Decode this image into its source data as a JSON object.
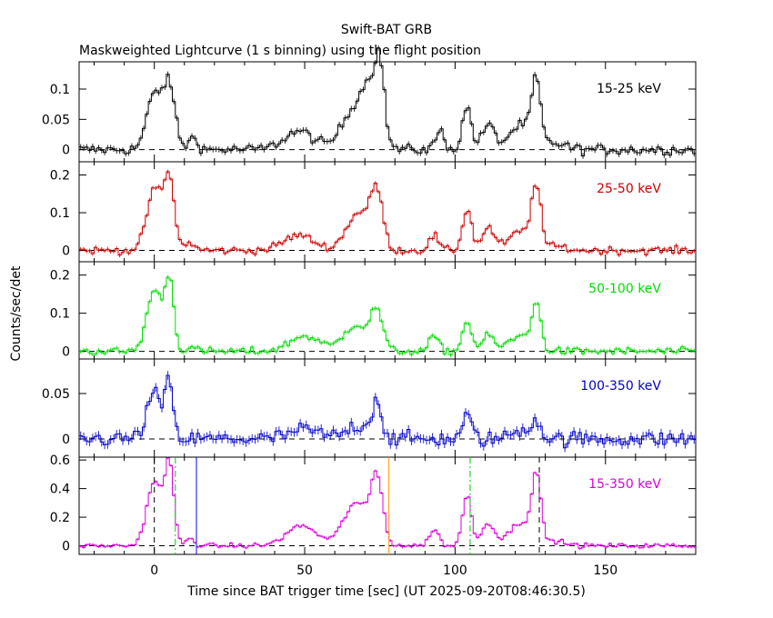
{
  "chart_data": {
    "type": "line",
    "title": "Swift-BAT GRB",
    "subtitle": "Maskweighted Lightcurve (1 s binning) using the flight position",
    "xlabel": "Time since BAT trigger time [sec] (UT 2025-09-20T08:46:30.5)",
    "ylabel": "Counts/sec/det",
    "xlim": [
      -25,
      180
    ],
    "xticks": [
      0,
      50,
      100,
      150
    ],
    "marker_lines": [
      {
        "x": 0,
        "color": "#000000",
        "style": "dashed"
      },
      {
        "x": 7,
        "color": "#00cc00",
        "style": "dashdot"
      },
      {
        "x": 14,
        "color": "#0000ff",
        "style": "solid"
      },
      {
        "x": 78,
        "color": "#ff9900",
        "style": "solid"
      },
      {
        "x": 105,
        "color": "#00cc00",
        "style": "dashdot"
      },
      {
        "x": 128,
        "color": "#000000",
        "style": "dashed"
      }
    ],
    "panels": [
      {
        "name": "15-25 keV",
        "color": "#000000",
        "ylim": [
          -0.02,
          0.145
        ],
        "yticks": [
          0,
          0.05,
          0.1
        ],
        "ytick_labels": [
          "0",
          "0.05",
          "0.1"
        ],
        "noise": 0.006,
        "peaks": [
          [
            0,
            0.09,
            2.5
          ],
          [
            5,
            0.1,
            2.0
          ],
          [
            13,
            0.02,
            1.5
          ],
          [
            48,
            0.03,
            5.0
          ],
          [
            66,
            0.06,
            4.0
          ],
          [
            72,
            0.09,
            3.0
          ],
          [
            75,
            0.1,
            1.5
          ],
          [
            95,
            0.03,
            1.5
          ],
          [
            104,
            0.07,
            1.5
          ],
          [
            111,
            0.04,
            2.0
          ],
          [
            122,
            0.04,
            4.0
          ],
          [
            127,
            0.1,
            1.5
          ],
          [
            134,
            0.01,
            3.0
          ]
        ]
      },
      {
        "name": "25-50 keV",
        "color": "#cc0000",
        "ylim": [
          -0.03,
          0.235
        ],
        "yticks": [
          0,
          0.1,
          0.2
        ],
        "ytick_labels": [
          "0",
          "0.1",
          "0.2"
        ],
        "noise": 0.007,
        "peaks": [
          [
            0,
            0.16,
            2.5
          ],
          [
            5,
            0.18,
            1.8
          ],
          [
            12,
            0.02,
            1.5
          ],
          [
            48,
            0.04,
            5.0
          ],
          [
            68,
            0.1,
            4.0
          ],
          [
            74,
            0.14,
            2.0
          ],
          [
            93,
            0.04,
            1.5
          ],
          [
            104,
            0.11,
            1.5
          ],
          [
            111,
            0.06,
            2.0
          ],
          [
            122,
            0.05,
            4.0
          ],
          [
            127,
            0.16,
            1.5
          ],
          [
            134,
            0.01,
            3.0
          ]
        ]
      },
      {
        "name": "50-100 keV",
        "color": "#00dd00",
        "ylim": [
          -0.02,
          0.235
        ],
        "yticks": [
          0,
          0.1,
          0.2
        ],
        "ytick_labels": [
          "0",
          "0.1",
          "0.2"
        ],
        "noise": 0.007,
        "peaks": [
          [
            0,
            0.16,
            2.5
          ],
          [
            5,
            0.18,
            1.5
          ],
          [
            12,
            0.01,
            1.5
          ],
          [
            50,
            0.04,
            5.0
          ],
          [
            67,
            0.07,
            4.0
          ],
          [
            74,
            0.1,
            2.0
          ],
          [
            93,
            0.04,
            1.5
          ],
          [
            104,
            0.08,
            1.5
          ],
          [
            111,
            0.04,
            2.0
          ],
          [
            122,
            0.04,
            4.0
          ],
          [
            127,
            0.11,
            1.5
          ]
        ]
      },
      {
        "name": "100-350 keV",
        "color": "#0000cc",
        "ylim": [
          -0.02,
          0.088
        ],
        "yticks": [
          0,
          0.05
        ],
        "ytick_labels": [
          "0",
          "0.05"
        ],
        "noise": 0.006,
        "peaks": [
          [
            0,
            0.05,
            2.5
          ],
          [
            5,
            0.06,
            1.2
          ],
          [
            50,
            0.01,
            5.0
          ],
          [
            68,
            0.015,
            4.0
          ],
          [
            74,
            0.04,
            1.5
          ],
          [
            104,
            0.025,
            1.5
          ],
          [
            122,
            0.01,
            3.0
          ],
          [
            127,
            0.02,
            1.5
          ]
        ]
      },
      {
        "name": "15-350 keV",
        "color": "#dd00dd",
        "ylim": [
          -0.06,
          0.62
        ],
        "yticks": [
          0,
          0.2,
          0.4,
          0.6
        ],
        "ytick_labels": [
          "0",
          "0.2",
          "0.4",
          "0.6"
        ],
        "noise": 0.012,
        "peaks": [
          [
            0,
            0.45,
            2.5
          ],
          [
            5,
            0.55,
            1.5
          ],
          [
            12,
            0.05,
            1.5
          ],
          [
            49,
            0.14,
            5.0
          ],
          [
            67,
            0.3,
            4.0
          ],
          [
            74,
            0.45,
            2.0
          ],
          [
            93,
            0.12,
            1.5
          ],
          [
            104,
            0.35,
            1.5
          ],
          [
            111,
            0.16,
            2.0
          ],
          [
            122,
            0.16,
            4.0
          ],
          [
            127,
            0.45,
            1.5
          ],
          [
            134,
            0.03,
            3.0
          ]
        ]
      }
    ]
  }
}
